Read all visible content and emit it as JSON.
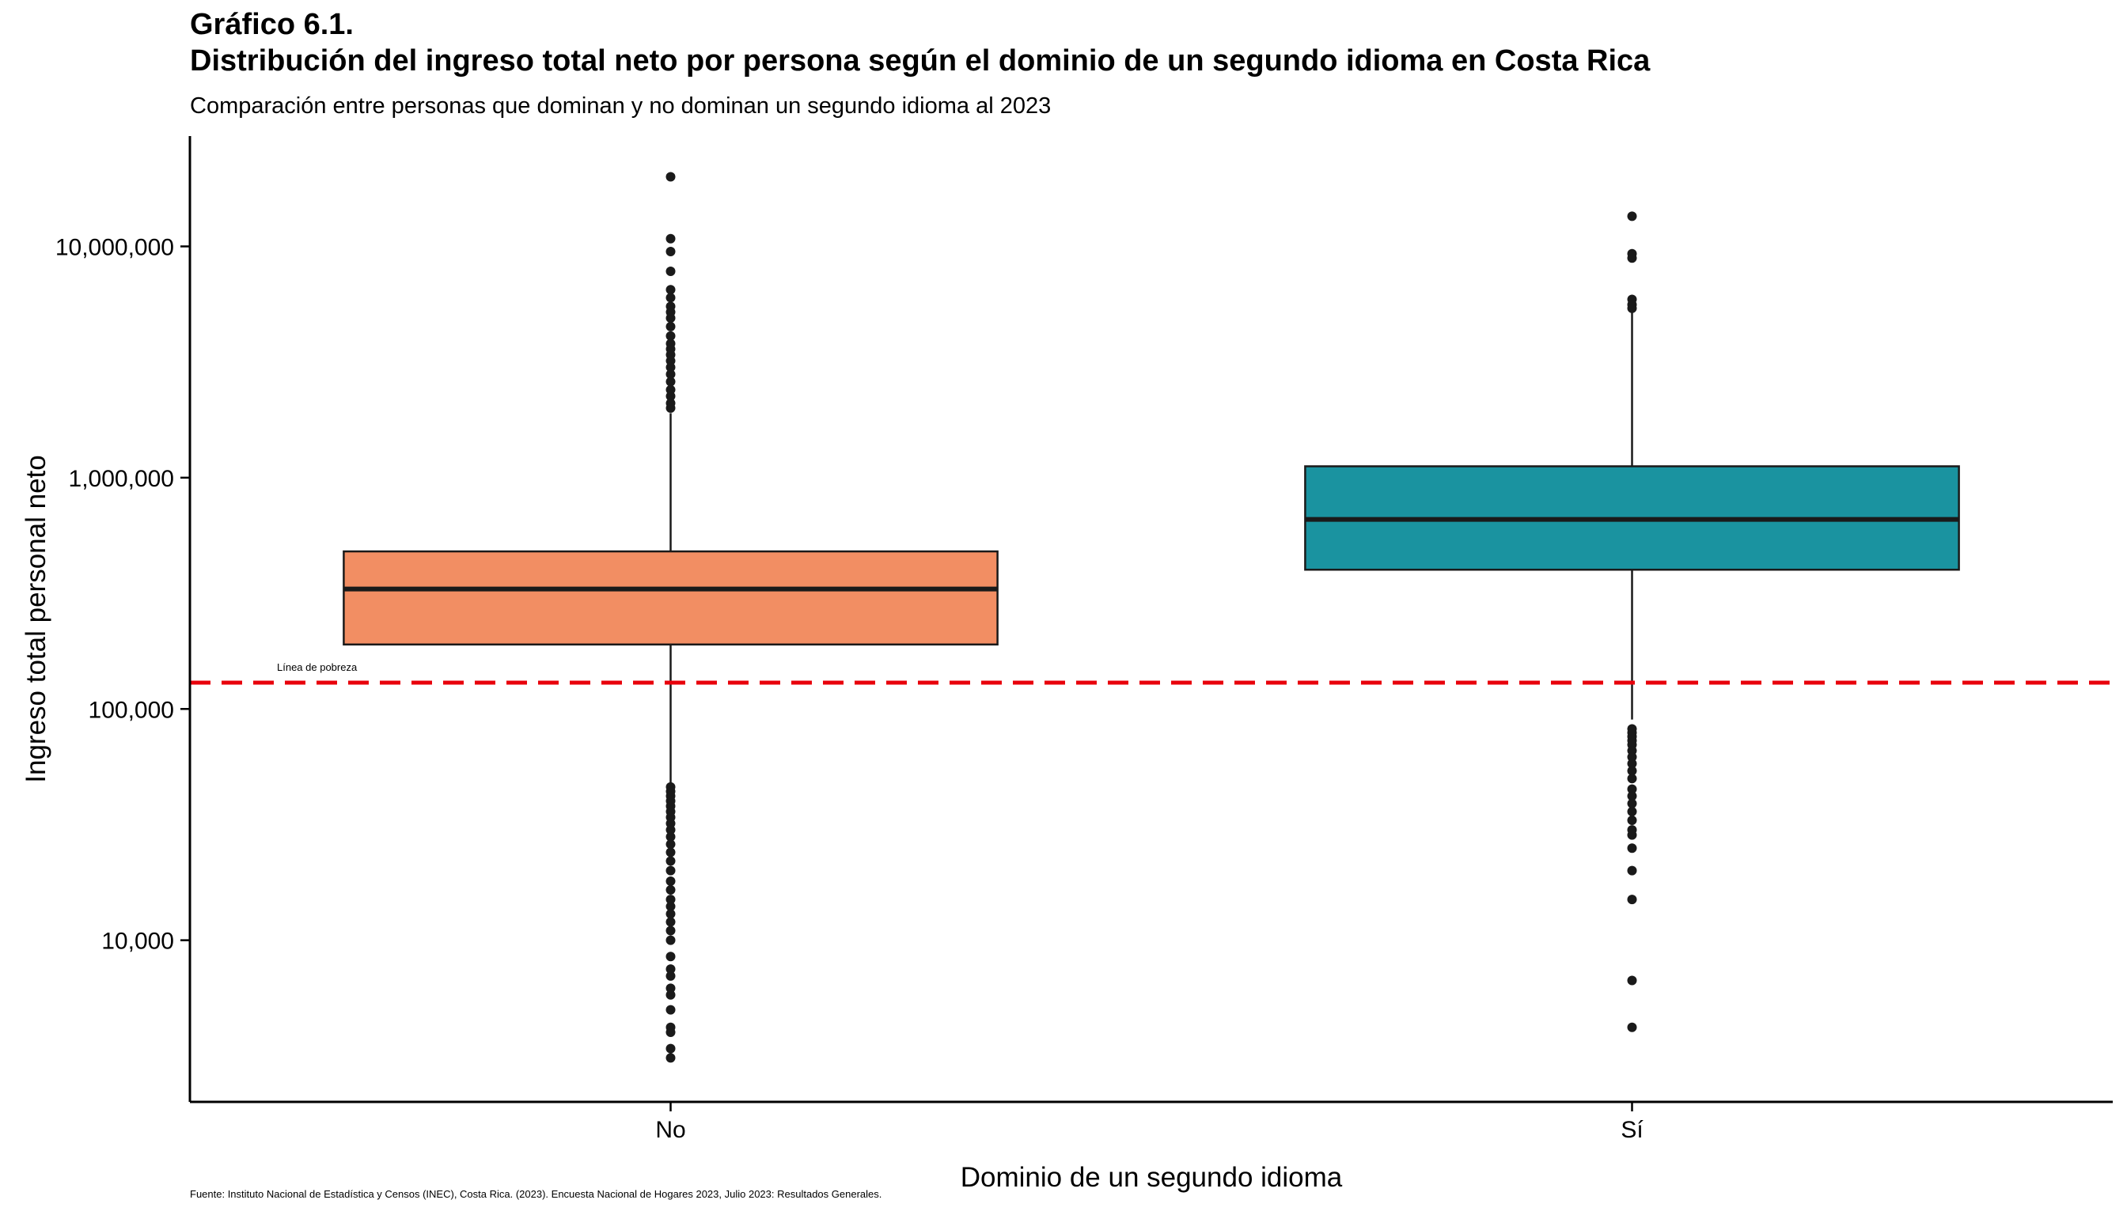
{
  "header": {
    "title_line1": "Gráfico 6.1.",
    "title_line2": "Distribución del ingreso total neto por persona según el dominio de un segundo idioma en Costa Rica",
    "subtitle": "Comparación entre personas que dominan y no dominan un segundo idioma al 2023"
  },
  "caption": "Fuente: Instituto Nacional de Estadística y Censos (INEC), Costa Rica. (2023). Encuesta Nacional de Hogares 2023, Julio 2023: Resultados Generales.",
  "chart_data": {
    "type": "boxplot",
    "xlabel": "Dominio de un segundo idioma",
    "ylabel": "Ingreso total personal neto",
    "y_scale": "log10",
    "ylim": [
      2000,
      30000000
    ],
    "y_ticks": [
      10000,
      100000,
      1000000,
      10000000
    ],
    "y_tick_labels": [
      "10,000",
      "100,000",
      "1,000,000",
      "10,000,000"
    ],
    "grid": false,
    "categories": [
      "No",
      "Sí"
    ],
    "boxes": [
      {
        "category": "No",
        "color": "#F28E63",
        "q1": 190000,
        "median": 330000,
        "q3": 480000,
        "whisker_low": 48000,
        "whisker_high": 1900000,
        "outliers": [
          20000000,
          10800000,
          9500000,
          7800000,
          6500000,
          6000000,
          5500000,
          5200000,
          4900000,
          4500000,
          4100000,
          3800000,
          3600000,
          3400000,
          3200000,
          3000000,
          2800000,
          2600000,
          2400000,
          2250000,
          2100000,
          2000000,
          46000,
          44000,
          42000,
          40000,
          38000,
          36000,
          34000,
          32000,
          30000,
          28000,
          26000,
          24000,
          22000,
          20000,
          18000,
          16500,
          15000,
          14000,
          13000,
          12000,
          11000,
          10000,
          8500,
          7500,
          7000,
          6200,
          5800,
          5000,
          4200,
          4000,
          3400,
          3100
        ]
      },
      {
        "category": "Sí",
        "color": "#1A93A0",
        "q1": 400000,
        "median": 660000,
        "q3": 1120000,
        "whisker_low": 90000,
        "whisker_high": 5200000,
        "outliers": [
          13500000,
          9300000,
          8900000,
          5900000,
          5600000,
          5400000,
          82000,
          79000,
          76000,
          73000,
          70000,
          66000,
          62000,
          58000,
          54000,
          50000,
          45000,
          42000,
          39000,
          36000,
          33000,
          30000,
          28500,
          25000,
          20000,
          15000,
          6700,
          4200
        ]
      }
    ],
    "reference_line": {
      "value": 130000,
      "label": "Línea de pobreza",
      "color": "#E8000B",
      "style": "dashed"
    }
  }
}
